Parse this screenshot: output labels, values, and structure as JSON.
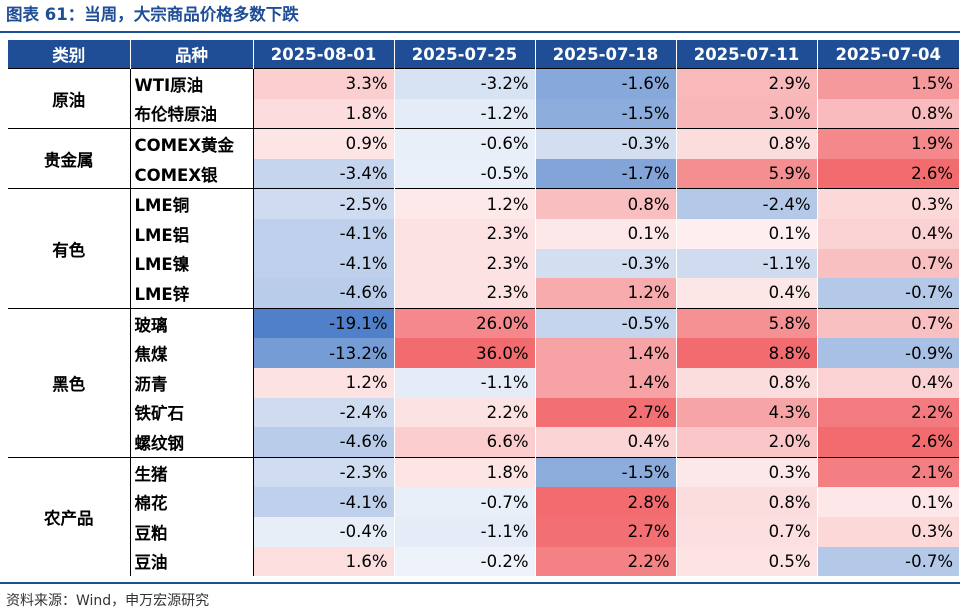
{
  "chart_data": {
    "type": "table",
    "title": "图表 61：当周，大宗商品价格多数下跌",
    "columns": [
      "类别",
      "品种",
      "2025-08-01",
      "2025-07-25",
      "2025-07-18",
      "2025-07-11",
      "2025-07-04"
    ],
    "groups": [
      {
        "category": "原油",
        "rows": [
          {
            "item": "WTI原油",
            "values": [
              "3.3%",
              "-3.2%",
              "-1.6%",
              "2.9%",
              "1.5%"
            ]
          },
          {
            "item": "布伦特原油",
            "values": [
              "1.8%",
              "-1.2%",
              "-1.5%",
              "3.0%",
              "0.8%"
            ]
          }
        ]
      },
      {
        "category": "贵金属",
        "rows": [
          {
            "item": "COMEX黄金",
            "values": [
              "0.9%",
              "-0.6%",
              "-0.3%",
              "0.8%",
              "1.9%"
            ]
          },
          {
            "item": "COMEX银",
            "values": [
              "-3.4%",
              "-0.5%",
              "-1.7%",
              "5.9%",
              "2.6%"
            ]
          }
        ]
      },
      {
        "category": "有色",
        "rows": [
          {
            "item": "LME铜",
            "values": [
              "-2.5%",
              "1.2%",
              "0.8%",
              "-2.4%",
              "0.3%"
            ]
          },
          {
            "item": "LME铝",
            "values": [
              "-4.1%",
              "2.3%",
              "0.1%",
              "0.1%",
              "0.4%"
            ]
          },
          {
            "item": "LME镍",
            "values": [
              "-4.1%",
              "2.3%",
              "-0.3%",
              "-1.1%",
              "0.7%"
            ]
          },
          {
            "item": "LME锌",
            "values": [
              "-4.6%",
              "2.3%",
              "1.2%",
              "0.4%",
              "-0.7%"
            ]
          }
        ]
      },
      {
        "category": "黑色",
        "rows": [
          {
            "item": "玻璃",
            "values": [
              "-19.1%",
              "26.0%",
              "-0.5%",
              "5.8%",
              "0.7%"
            ]
          },
          {
            "item": "焦煤",
            "values": [
              "-13.2%",
              "36.0%",
              "1.4%",
              "8.8%",
              "-0.9%"
            ]
          },
          {
            "item": "沥青",
            "values": [
              "1.2%",
              "-1.1%",
              "1.4%",
              "0.8%",
              "0.4%"
            ]
          },
          {
            "item": "铁矿石",
            "values": [
              "-2.4%",
              "2.2%",
              "2.7%",
              "4.3%",
              "2.2%"
            ]
          },
          {
            "item": "螺纹钢",
            "values": [
              "-4.6%",
              "6.6%",
              "0.4%",
              "2.0%",
              "2.6%"
            ]
          }
        ]
      },
      {
        "category": "农产品",
        "rows": [
          {
            "item": "生猪",
            "values": [
              "-2.3%",
              "1.8%",
              "-1.5%",
              "0.3%",
              "2.1%"
            ]
          },
          {
            "item": "棉花",
            "values": [
              "-4.1%",
              "-0.7%",
              "2.8%",
              "0.8%",
              "0.1%"
            ]
          },
          {
            "item": "豆粕",
            "values": [
              "-0.4%",
              "-1.1%",
              "2.7%",
              "0.7%",
              "0.3%"
            ]
          },
          {
            "item": "豆油",
            "values": [
              "1.6%",
              "-0.2%",
              "2.2%",
              "0.5%",
              "-0.7%"
            ]
          }
        ]
      }
    ]
  },
  "colors": {
    "header": "#1f4e96",
    "positive": "#f26b6f",
    "negative": "#4f80c9",
    "neutral": "#ffffff"
  },
  "source": "资料来源：Wind，申万宏源研究"
}
